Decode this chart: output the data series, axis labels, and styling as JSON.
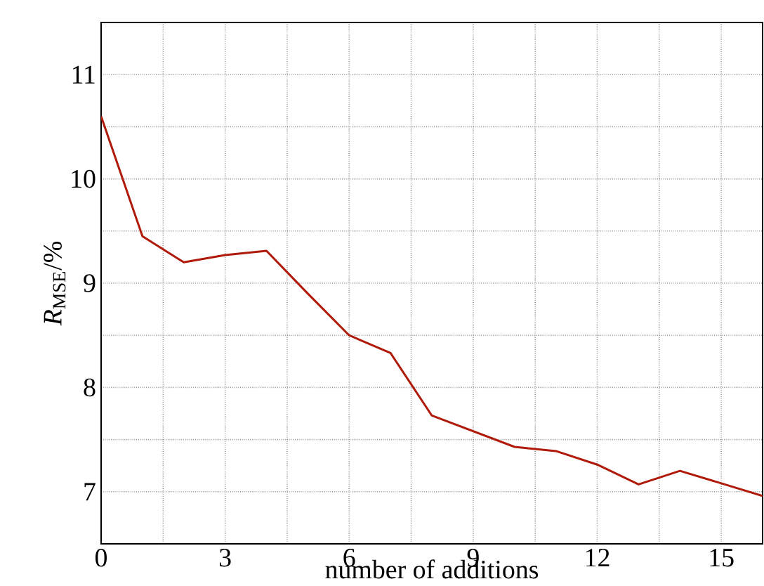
{
  "chart_data": {
    "type": "line",
    "xlabel": "number of additions",
    "ylabel": "*R*$_{MSE}$/%",
    "x": [
      0,
      1,
      2,
      3,
      4,
      5,
      6,
      7,
      8,
      9,
      10,
      11,
      12,
      13,
      14,
      15,
      16
    ],
    "series": [
      {
        "color": "#b01a0a",
        "values": [
          10.6,
          9.45,
          9.2,
          9.27,
          9.31,
          8.9,
          8.5,
          8.33,
          7.73,
          7.58,
          7.43,
          7.39,
          7.26,
          7.07,
          7.2,
          7.08,
          6.96
        ]
      }
    ],
    "xlim": [
      0,
      16
    ],
    "ylim": [
      6.5,
      11.5
    ],
    "xticks": [
      0,
      {
        "value": 1.5,
        "label": null
      },
      3,
      {
        "value": 4.5,
        "label": null
      },
      6,
      {
        "value": 7.5,
        "label": null
      },
      9,
      {
        "value": 10.5,
        "label": null
      },
      12,
      {
        "value": 13.5,
        "label": null
      },
      15
    ],
    "yticks": [
      {
        "value": 6.5,
        "label": null
      },
      7,
      {
        "value": 7.5,
        "label": null
      },
      8,
      {
        "value": 8.5,
        "label": null
      },
      9,
      {
        "value": 9.5,
        "label": null
      },
      10,
      {
        "value": 10.5,
        "label": null
      },
      11
    ],
    "grid": true,
    "marker": "none",
    "line_style": "solid"
  }
}
